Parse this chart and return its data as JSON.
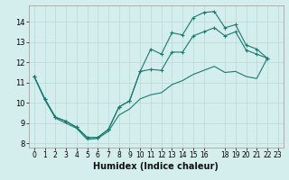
{
  "xlabel": "Humidex (Indice chaleur)",
  "bg_color": "#d4eeed",
  "grid_color": "#b8d8d4",
  "line_color": "#1a7a6e",
  "xlim": [
    -0.5,
    23.5
  ],
  "ylim": [
    7.8,
    14.8
  ],
  "xticks": [
    0,
    1,
    2,
    3,
    4,
    5,
    6,
    7,
    8,
    9,
    10,
    11,
    12,
    13,
    14,
    15,
    16,
    18,
    19,
    20,
    21,
    22,
    23
  ],
  "yticks": [
    8,
    9,
    10,
    11,
    12,
    13,
    14
  ],
  "curve_top": [
    11.3,
    10.2,
    9.3,
    9.1,
    8.8,
    8.3,
    8.3,
    8.7,
    9.8,
    10.1,
    11.55,
    12.65,
    12.4,
    13.45,
    13.35,
    14.2,
    14.45,
    14.5,
    13.7,
    13.85,
    12.85,
    12.65,
    12.2
  ],
  "curve_mid": [
    11.3,
    10.2,
    9.3,
    9.1,
    8.8,
    8.3,
    8.3,
    8.7,
    9.8,
    10.1,
    11.55,
    11.65,
    11.6,
    12.5,
    12.5,
    13.3,
    13.5,
    13.7,
    13.3,
    13.5,
    12.6,
    12.4,
    12.2
  ],
  "curve_low": [
    11.3,
    10.15,
    9.25,
    9.0,
    8.75,
    8.2,
    8.25,
    8.6,
    9.4,
    9.7,
    10.2,
    10.4,
    10.5,
    10.9,
    11.1,
    11.4,
    11.6,
    11.8,
    11.5,
    11.55,
    11.3,
    11.2,
    12.2
  ],
  "x_values": [
    0,
    1,
    2,
    3,
    4,
    5,
    6,
    7,
    8,
    9,
    10,
    11,
    12,
    13,
    14,
    15,
    16,
    17,
    18,
    19,
    20,
    21,
    22
  ]
}
